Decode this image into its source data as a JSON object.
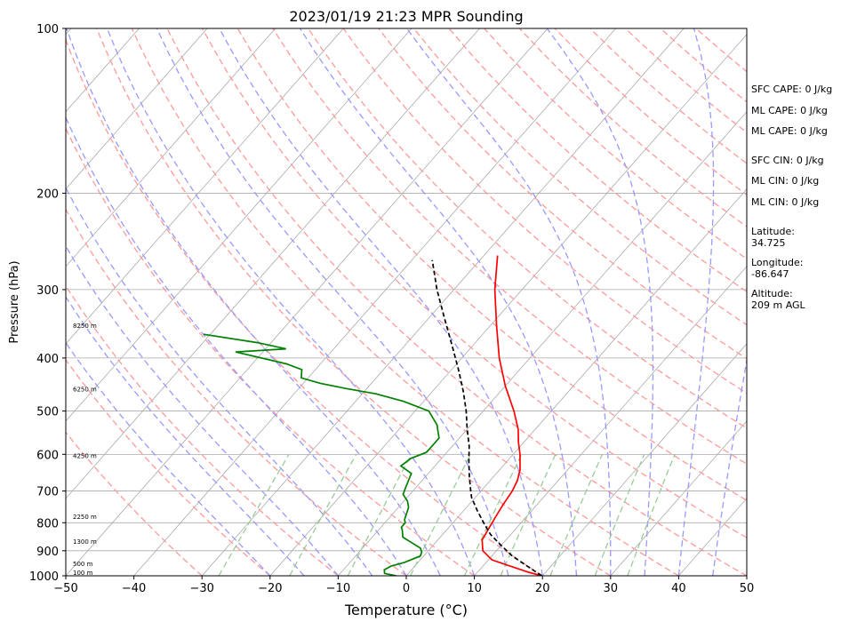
{
  "chart_data": {
    "type": "line",
    "subtype": "skew-T log-P sounding",
    "title": "2023/01/19 21:23 MPR Sounding",
    "xlabel": "Temperature (°C)",
    "ylabel": "Pressure (hPa)",
    "xlim": [
      -50,
      50
    ],
    "ylim": [
      1000,
      100
    ],
    "yscale": "log",
    "grid": true,
    "x_ticks": [
      "−50",
      "−40",
      "−30",
      "−20",
      "−10",
      "0",
      "10",
      "20",
      "30",
      "40",
      "50"
    ],
    "y_ticks": [
      "100",
      "200",
      "300",
      "400",
      "500",
      "600",
      "700",
      "800",
      "900",
      "1000"
    ],
    "series": [
      {
        "color": "#ff0000",
        "points": [
          [
            1000,
            19.9
          ],
          [
            985,
            17.5
          ],
          [
            960,
            14.0
          ],
          [
            935,
            10.5
          ],
          [
            900,
            8.0
          ],
          [
            860,
            6.5
          ],
          [
            820,
            6.0
          ],
          [
            780,
            5.5
          ],
          [
            740,
            5.0
          ],
          [
            700,
            4.6
          ],
          [
            670,
            4.0
          ],
          [
            640,
            3.0
          ],
          [
            600,
            1.0
          ],
          [
            570,
            -0.8
          ],
          [
            540,
            -2.5
          ],
          [
            500,
            -5.5
          ],
          [
            450,
            -10.0
          ],
          [
            400,
            -14.5
          ],
          [
            350,
            -19.0
          ],
          [
            300,
            -24.0
          ],
          [
            260,
            -28.0
          ]
        ]
      },
      {
        "color": "#008000",
        "points": [
          [
            1000,
            -1.5
          ],
          [
            990,
            -3.5
          ],
          [
            975,
            -4.0
          ],
          [
            960,
            -3.5
          ],
          [
            945,
            -2.0
          ],
          [
            920,
            -0.5
          ],
          [
            905,
            -0.8
          ],
          [
            890,
            -1.5
          ],
          [
            870,
            -3.5
          ],
          [
            850,
            -5.5
          ],
          [
            825,
            -6.5
          ],
          [
            815,
            -7.0
          ],
          [
            800,
            -7.0
          ],
          [
            790,
            -7.5
          ],
          [
            770,
            -8.0
          ],
          [
            750,
            -8.5
          ],
          [
            730,
            -9.5
          ],
          [
            710,
            -11.0
          ],
          [
            690,
            -11.5
          ],
          [
            670,
            -12.0
          ],
          [
            650,
            -12.5
          ],
          [
            630,
            -15.0
          ],
          [
            610,
            -14.5
          ],
          [
            595,
            -13.0
          ],
          [
            580,
            -13.0
          ],
          [
            560,
            -13.0
          ],
          [
            545,
            -14.0
          ],
          [
            530,
            -15.0
          ],
          [
            500,
            -18.0
          ],
          [
            480,
            -23.0
          ],
          [
            465,
            -28.0
          ],
          [
            455,
            -33.0
          ],
          [
            445,
            -37.5
          ],
          [
            435,
            -41.0
          ],
          [
            420,
            -42.0
          ],
          [
            410,
            -45.0
          ],
          [
            390,
            -54.0
          ],
          [
            385,
            -47.0
          ],
          [
            375,
            -52.0
          ],
          [
            362,
            -61.0
          ]
        ]
      },
      {
        "color": "#000000",
        "style": "dashed",
        "points": [
          [
            1000,
            19.9
          ],
          [
            960,
            16.5
          ],
          [
            920,
            13.0
          ],
          [
            880,
            10.0
          ],
          [
            840,
            7.0
          ],
          [
            800,
            4.5
          ],
          [
            760,
            2.0
          ],
          [
            720,
            -0.5
          ],
          [
            700,
            -1.5
          ],
          [
            660,
            -3.5
          ],
          [
            620,
            -5.5
          ],
          [
            580,
            -7.5
          ],
          [
            540,
            -10.0
          ],
          [
            500,
            -12.5
          ],
          [
            460,
            -15.5
          ],
          [
            420,
            -19.0
          ],
          [
            380,
            -23.0
          ],
          [
            340,
            -27.5
          ],
          [
            300,
            -32.5
          ],
          [
            265,
            -37.0
          ]
        ]
      }
    ],
    "height_labels": [
      {
        "text": "100 m",
        "p": 1000
      },
      {
        "text": "500 m",
        "p": 953
      },
      {
        "text": "1300 m",
        "p": 867
      },
      {
        "text": "2250 m",
        "p": 782
      },
      {
        "text": "4250 m",
        "p": 605
      },
      {
        "text": "6250 m",
        "p": 457
      },
      {
        "text": "8250 m",
        "p": 350
      }
    ]
  },
  "side_text": {
    "sfc_cape": "SFC CAPE: 0 J/kg",
    "ml_cape_1": "ML CAPE: 0 J/kg",
    "ml_cape_2": "ML CAPE: 0 J/kg",
    "sfc_cin": "SFC CIN: 0 J/kg",
    "ml_cin_1": "ML CIN: 0 J/kg",
    "ml_cin_2": "ML CIN: 0 J/kg",
    "latitude": "Latitude:\n34.725",
    "longitude": "Longitude:\n-86.647",
    "altitude": "Altitude:\n209 m AGL"
  },
  "colors": {
    "isotherm": "#aaaaaa",
    "dry_adiabat": "#ff9999",
    "moist_adiabat": "#9999ff",
    "mixing_ratio": "#99cc99",
    "temperature": "#ff0000",
    "dewpoint": "#008000",
    "parcel": "#000000"
  }
}
